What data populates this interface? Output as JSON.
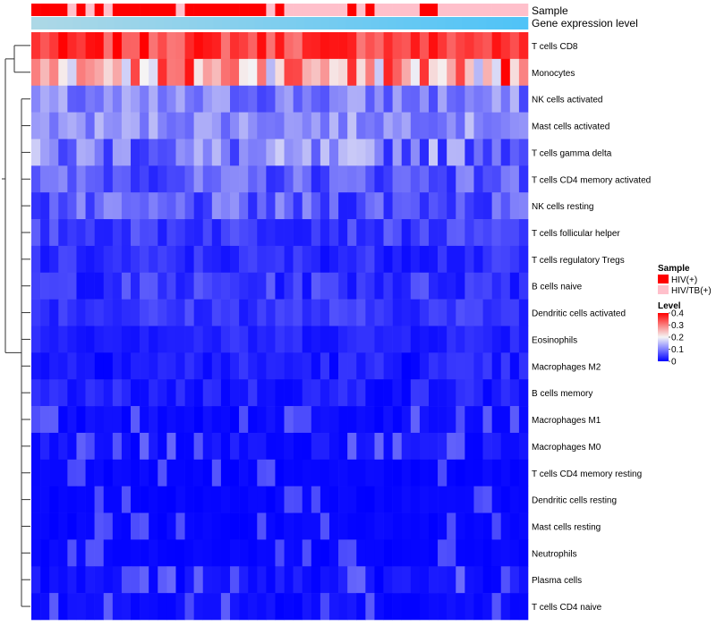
{
  "chart_data": {
    "type": "heatmap",
    "annotation_labels": {
      "sample": "Sample",
      "expression": "Gene expression level"
    },
    "rows": [
      "T cells CD8",
      "Monocytes",
      "NK cells activated",
      "Mast cells activated",
      "T cells gamma delta",
      "T cells CD4 memory activated",
      "NK cells resting",
      "T cells follicular helper",
      "T cells regulatory  Tregs",
      "B cells naive",
      "Dendritic cells activated",
      "Eosinophils",
      "Macrophages M2",
      "B cells memory",
      "Macrophages M1",
      "Macrophages M0",
      "T cells CD4 memory resting",
      "Dendritic cells resting",
      "Mast cells resting",
      "Neutrophils",
      "Plasma cells",
      "T cells CD4 naive"
    ],
    "sample_groups": [
      1,
      1,
      1,
      1,
      2,
      1,
      2,
      1,
      2,
      1,
      1,
      1,
      1,
      1,
      1,
      1,
      2,
      1,
      1,
      1,
      1,
      1,
      1,
      1,
      1,
      1,
      2,
      1,
      2,
      2,
      2,
      2,
      2,
      2,
      2,
      1,
      2,
      1,
      2,
      2,
      2,
      2,
      2,
      1,
      1,
      2,
      2,
      2,
      2,
      2,
      2,
      2,
      2,
      2,
      2
    ],
    "gene_expression_range": [
      0,
      1
    ],
    "row_templates": [
      [
        0.3,
        0.4
      ],
      [
        0.15,
        0.4
      ],
      [
        0.05,
        0.15
      ],
      [
        0.08,
        0.16
      ],
      [
        0.03,
        0.17
      ],
      [
        0.03,
        0.12
      ],
      [
        0.02,
        0.12
      ],
      [
        0.02,
        0.08
      ],
      [
        0.01,
        0.06
      ],
      [
        0.01,
        0.08
      ],
      [
        0.02,
        0.07
      ],
      [
        0.01,
        0.05
      ],
      [
        0.0,
        0.05
      ],
      [
        0.0,
        0.05
      ],
      [
        0.0,
        0.02
      ],
      [
        0.0,
        0.03
      ],
      [
        0.0,
        0.01
      ],
      [
        0.0,
        0.01
      ],
      [
        0.0,
        0.01
      ],
      [
        0.0,
        0.01
      ],
      [
        0.0,
        0.03
      ],
      [
        0.0,
        0.02
      ]
    ],
    "legend": {
      "sample_title": "Sample",
      "sample_entries": [
        {
          "label": "HIV(+)",
          "color": "#ff0000"
        },
        {
          "label": "HIV/TB(+)",
          "color": "#ffc0cb"
        }
      ],
      "level_title": "Level",
      "level_ticks": [
        "0.4",
        "0.3",
        "0.2",
        "0.1",
        "0"
      ],
      "level_values": [
        0.4,
        0.3,
        0.2,
        0.1,
        0
      ]
    },
    "colors": {
      "low": "#0000ff",
      "mid": "#f5f5f5",
      "high": "#ff0000",
      "expr_low": "#add8e6",
      "expr_high": "#4fc3f7"
    }
  }
}
